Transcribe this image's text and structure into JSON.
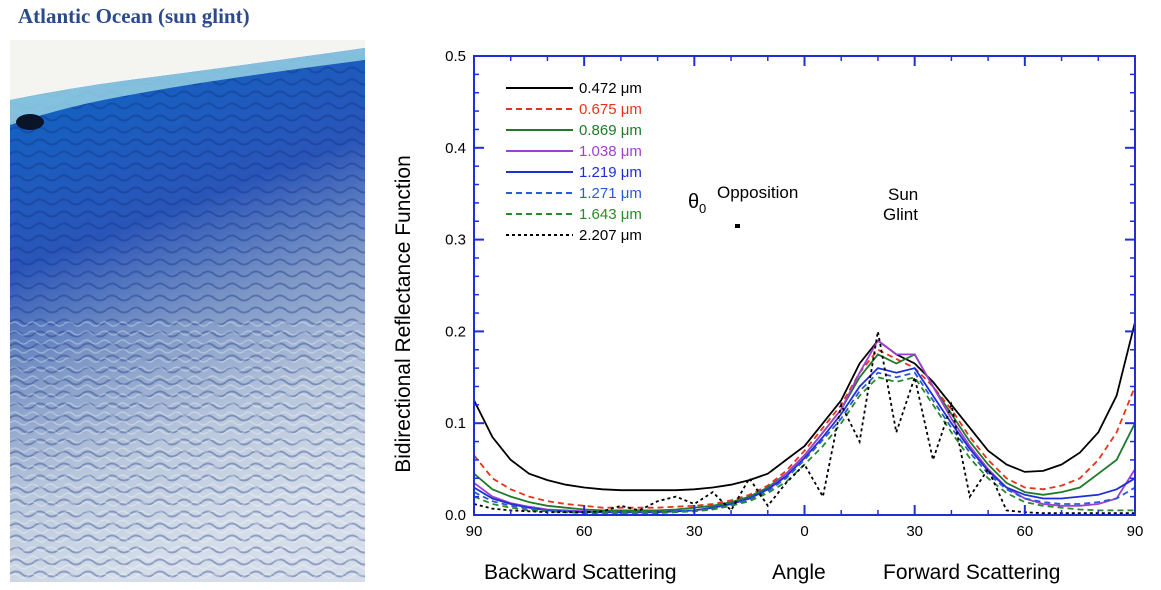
{
  "photo": {
    "title": "Atlantic Ocean (sun glint)"
  },
  "chart_data": {
    "type": "line",
    "ylabel": "Bidirectional Reflectance Function",
    "xlabel_parts": [
      "Backward Scattering",
      "Angle",
      "Forward Scattering"
    ],
    "xlim": [
      -90,
      90
    ],
    "ylim": [
      0,
      0.5
    ],
    "x_ticks": [
      -90,
      -60,
      -30,
      0,
      30,
      60,
      90
    ],
    "x_tick_labels": [
      "90",
      "60",
      "30",
      "0",
      "30",
      "60",
      "90"
    ],
    "y_ticks": [
      0,
      0.1,
      0.2,
      0.3,
      0.4,
      0.5
    ],
    "y_tick_labels": [
      "0.0",
      "0.1",
      "0.2",
      "0.3",
      "0.4",
      "0.5"
    ],
    "annotations": {
      "theta_symbol": "θ",
      "theta_subscript": "0",
      "opposition": "Opposition",
      "sun_line1": "Sun",
      "sun_line2": "Glint",
      "theta0_value": -20
    },
    "x": [
      -90,
      -85,
      -80,
      -75,
      -70,
      -65,
      -60,
      -55,
      -50,
      -45,
      -40,
      -35,
      -30,
      -25,
      -20,
      -15,
      -10,
      -5,
      0,
      5,
      10,
      15,
      20,
      25,
      30,
      35,
      40,
      45,
      50,
      55,
      60,
      65,
      70,
      75,
      80,
      85,
      90
    ],
    "series": [
      {
        "name": "0.472 μm",
        "color": "#000000",
        "dash": "solid",
        "values": [
          0.125,
          0.085,
          0.06,
          0.045,
          0.038,
          0.033,
          0.03,
          0.028,
          0.027,
          0.027,
          0.027,
          0.027,
          0.028,
          0.03,
          0.033,
          0.038,
          0.045,
          0.06,
          0.075,
          0.1,
          0.125,
          0.165,
          0.19,
          0.175,
          0.165,
          0.145,
          0.12,
          0.095,
          0.07,
          0.055,
          0.047,
          0.048,
          0.055,
          0.068,
          0.09,
          0.13,
          0.21
        ]
      },
      {
        "name": "0.675 μm",
        "color": "#e8331c",
        "dash": "dash",
        "values": [
          0.065,
          0.04,
          0.028,
          0.02,
          0.015,
          0.012,
          0.01,
          0.008,
          0.008,
          0.008,
          0.008,
          0.009,
          0.01,
          0.012,
          0.016,
          0.022,
          0.032,
          0.048,
          0.07,
          0.095,
          0.12,
          0.155,
          0.18,
          0.17,
          0.16,
          0.14,
          0.115,
          0.085,
          0.06,
          0.04,
          0.03,
          0.028,
          0.032,
          0.04,
          0.06,
          0.09,
          0.14
        ]
      },
      {
        "name": "0.869 μm",
        "color": "#1f7a2a",
        "dash": "solid",
        "values": [
          0.045,
          0.028,
          0.02,
          0.014,
          0.01,
          0.008,
          0.006,
          0.005,
          0.005,
          0.005,
          0.005,
          0.006,
          0.008,
          0.01,
          0.014,
          0.02,
          0.03,
          0.045,
          0.065,
          0.09,
          0.115,
          0.15,
          0.175,
          0.165,
          0.175,
          0.14,
          0.11,
          0.08,
          0.055,
          0.035,
          0.025,
          0.022,
          0.025,
          0.03,
          0.045,
          0.06,
          0.1
        ]
      },
      {
        "name": "1.038 μm",
        "color": "#a040d0",
        "dash": "solid",
        "values": [
          0.035,
          0.02,
          0.013,
          0.009,
          0.006,
          0.005,
          0.004,
          0.003,
          0.003,
          0.003,
          0.003,
          0.004,
          0.005,
          0.008,
          0.012,
          0.018,
          0.028,
          0.045,
          0.065,
          0.09,
          0.115,
          0.155,
          0.19,
          0.175,
          0.175,
          0.14,
          0.105,
          0.075,
          0.05,
          0.03,
          0.018,
          0.012,
          0.01,
          0.01,
          0.012,
          0.018,
          0.05
        ]
      },
      {
        "name": "1.219 μm",
        "color": "#1f2fd6",
        "dash": "solid",
        "values": [
          0.03,
          0.018,
          0.012,
          0.008,
          0.005,
          0.004,
          0.003,
          0.003,
          0.003,
          0.003,
          0.003,
          0.004,
          0.005,
          0.008,
          0.012,
          0.018,
          0.028,
          0.042,
          0.062,
          0.085,
          0.11,
          0.14,
          0.16,
          0.155,
          0.16,
          0.13,
          0.1,
          0.072,
          0.048,
          0.03,
          0.022,
          0.018,
          0.018,
          0.02,
          0.022,
          0.028,
          0.04
        ]
      },
      {
        "name": "1.271 μm",
        "color": "#2a5bd6",
        "dash": "dash",
        "values": [
          0.025,
          0.015,
          0.01,
          0.007,
          0.005,
          0.004,
          0.003,
          0.003,
          0.003,
          0.003,
          0.003,
          0.004,
          0.005,
          0.007,
          0.011,
          0.017,
          0.026,
          0.04,
          0.06,
          0.082,
          0.105,
          0.135,
          0.155,
          0.15,
          0.155,
          0.125,
          0.095,
          0.068,
          0.045,
          0.028,
          0.018,
          0.014,
          0.012,
          0.012,
          0.014,
          0.018,
          0.03
        ]
      },
      {
        "name": "1.643 μm",
        "color": "#2a8a2a",
        "dash": "dash",
        "values": [
          0.02,
          0.012,
          0.008,
          0.005,
          0.004,
          0.003,
          0.002,
          0.002,
          0.002,
          0.002,
          0.002,
          0.003,
          0.004,
          0.006,
          0.01,
          0.015,
          0.024,
          0.036,
          0.055,
          0.075,
          0.1,
          0.13,
          0.15,
          0.145,
          0.15,
          0.12,
          0.09,
          0.062,
          0.04,
          0.024,
          0.014,
          0.01,
          0.008,
          0.006,
          0.005,
          0.005,
          0.005
        ]
      },
      {
        "name": "2.207 μm",
        "color": "#000000",
        "dash": "dot",
        "values": [
          0.012,
          0.007,
          0.005,
          0.004,
          0.003,
          0.003,
          0.003,
          0.004,
          0.01,
          0.005,
          0.015,
          0.02,
          0.012,
          0.025,
          0.005,
          0.04,
          0.01,
          0.035,
          0.055,
          0.02,
          0.12,
          0.08,
          0.2,
          0.09,
          0.15,
          0.06,
          0.12,
          0.02,
          0.05,
          0.005,
          0.003,
          0.002,
          0.002,
          0.002,
          0.002,
          0.002,
          0.002
        ]
      }
    ]
  }
}
